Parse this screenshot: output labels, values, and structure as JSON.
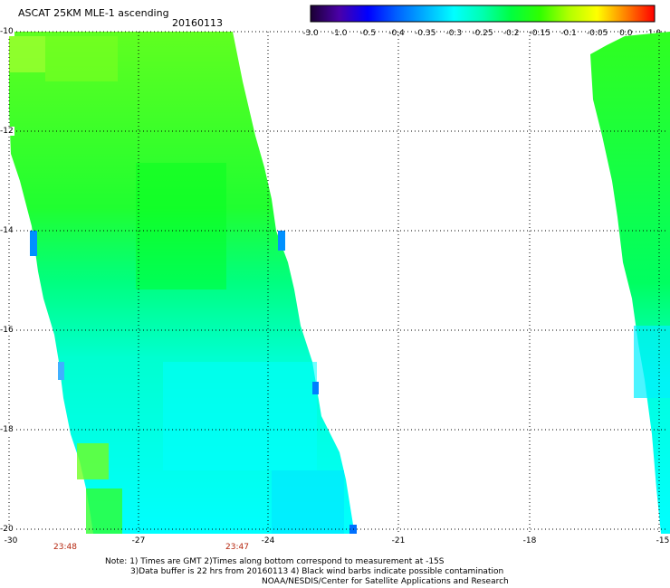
{
  "header": {
    "title": "ASCAT 25KM MLE-1 ascending",
    "date": "20160113"
  },
  "colorbar": {
    "ticks": [
      "-3.0",
      "-1.0",
      "-0.5",
      "-0.4",
      "-0.35",
      "-0.3",
      "-0.25",
      "-0.2",
      "-0.15",
      "-0.1",
      "-0.05",
      "0.0",
      "1.0"
    ],
    "colors": [
      "#1a0033",
      "#4a00a8",
      "#0000ff",
      "#0060ff",
      "#00b0ff",
      "#00ffff",
      "#00ffb0",
      "#00ff40",
      "#30ff00",
      "#b0ff00",
      "#ffff00",
      "#ff8000",
      "#ff0000"
    ]
  },
  "map": {
    "lon_labels": [
      "-30",
      "-27",
      "-24",
      "-21",
      "-18",
      "-15"
    ],
    "lat_labels": [
      "-10",
      "-12",
      "-14",
      "-16",
      "-18",
      "-20"
    ],
    "time_labels": [
      "23:48",
      "23:47"
    ],
    "colors": {
      "cyan": "#00ffff",
      "cyan_green": "#00ffa0",
      "green": "#00ff40",
      "lime": "#40ff00",
      "yellow_green": "#a0ff20",
      "blue": "#0090ff",
      "grid": "#000000",
      "time_red": "#b5260e"
    }
  },
  "notes": {
    "line1": "Note: 1) Times are GMT 2)Times along bottom correspond to measurement at -15S",
    "line2": "3)Data buffer is 22 hrs from 20160113 4) Black wind barbs indicate possible contamination",
    "line3": "NOAA/NESDIS/Center for Satellite Applications and Research"
  }
}
